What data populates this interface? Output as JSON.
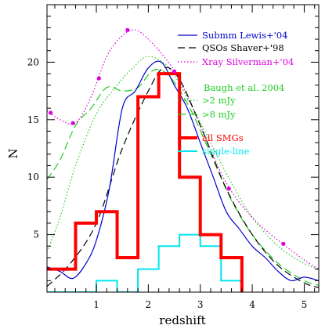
{
  "chart_data": {
    "type": "line",
    "xlabel": "redshift",
    "ylabel": "N",
    "xlim": [
      0.05,
      5.28
    ],
    "ylim": [
      0,
      25
    ],
    "x_ticks": [
      "1",
      "2",
      "3",
      "4",
      "5"
    ],
    "y_ticks": [
      "5",
      "10",
      "15",
      "20"
    ],
    "series": [
      {
        "name": "Submm Lewis+'04",
        "color": "#0000cc",
        "style": "solid",
        "x": [
          0.05,
          0.3,
          0.55,
          0.8,
          1.0,
          1.25,
          1.5,
          1.75,
          2.0,
          2.25,
          2.5,
          2.75,
          3.0,
          3.25,
          3.5,
          3.75,
          4.0,
          4.25,
          4.5,
          4.75,
          5.0,
          5.28
        ],
        "y": [
          2.2,
          1.8,
          1.2,
          2.5,
          4.5,
          9.0,
          16.0,
          17.5,
          19.5,
          20.0,
          18.0,
          16.0,
          13.0,
          10.0,
          7.0,
          5.5,
          4.0,
          3.0,
          1.8,
          1.0,
          1.3,
          1.0
        ]
      },
      {
        "name": "QSOs Shaver+'98",
        "color": "#000000",
        "style": "dashed",
        "x": [
          0.05,
          0.5,
          1.0,
          1.5,
          2.0,
          2.3,
          2.6,
          3.0,
          3.5,
          4.0,
          4.5,
          5.0,
          5.28
        ],
        "y": [
          0.5,
          2.5,
          6.0,
          12.5,
          17.5,
          19.5,
          18.5,
          14.5,
          9.0,
          5.0,
          2.3,
          0.8,
          0.4
        ]
      },
      {
        "name": "Xray Silverman+'04",
        "color": "#e000e0",
        "style": "dotted",
        "x": [
          0.05,
          0.3,
          0.6,
          0.9,
          1.2,
          1.5,
          1.75,
          2.0,
          2.3,
          2.6,
          3.0,
          3.5,
          4.0,
          4.5,
          5.0,
          5.28
        ],
        "y": [
          15.8,
          15.0,
          14.7,
          17.0,
          20.5,
          22.3,
          22.8,
          22.0,
          20.5,
          18.5,
          14.5,
          9.5,
          6.5,
          4.5,
          2.8,
          2.0
        ]
      },
      {
        "name": ">2 mJy",
        "color": "#22cc22",
        "style": "dotted",
        "x": [
          0.05,
          0.3,
          0.6,
          1.0,
          1.4,
          1.7,
          2.0,
          2.4,
          2.8,
          3.2,
          3.6,
          4.0,
          4.5,
          5.0,
          5.28
        ],
        "y": [
          3.5,
          6.5,
          11.0,
          15.5,
          18.0,
          19.5,
          20.5,
          19.5,
          16.5,
          13.0,
          9.5,
          6.5,
          4.0,
          2.5,
          2.0
        ]
      },
      {
        "name": ">8 mJy",
        "color": "#22cc22",
        "style": "dashed",
        "x": [
          0.05,
          0.3,
          0.6,
          0.9,
          1.2,
          1.5,
          1.8,
          2.1,
          2.4,
          2.8,
          3.2,
          3.6,
          4.0,
          4.5,
          5.0,
          5.28
        ],
        "y": [
          9.8,
          11.5,
          14.5,
          16.0,
          17.8,
          17.5,
          17.8,
          19.3,
          18.8,
          16.0,
          12.0,
          8.0,
          5.0,
          2.5,
          1.0,
          0.6
        ]
      },
      {
        "name": "all SMGs",
        "color": "#ff0000",
        "style": "histogram",
        "x": [
          0.05,
          0.3,
          0.6,
          1.0,
          1.4,
          1.8,
          2.2,
          2.6,
          3.0,
          3.4,
          3.8
        ],
        "y": [
          2,
          2,
          6,
          7,
          3,
          17,
          19,
          10,
          5,
          3,
          0
        ]
      },
      {
        "name": "single-line",
        "color": "#00e5ee",
        "style": "histogram",
        "x": [
          0.05,
          1.0,
          1.4,
          1.8,
          2.2,
          2.6,
          3.0,
          3.4,
          3.8
        ],
        "y": [
          0,
          1,
          0,
          2,
          4,
          5,
          4,
          1,
          0
        ]
      }
    ],
    "markers": {
      "series": "Xray Silverman+'04",
      "color": "#e000e0",
      "points": [
        {
          "x": 0.12,
          "y": 15.6
        },
        {
          "x": 0.55,
          "y": 14.7
        },
        {
          "x": 1.05,
          "y": 18.6
        },
        {
          "x": 1.6,
          "y": 22.8
        },
        {
          "x": 2.5,
          "y": 19.2
        },
        {
          "x": 3.55,
          "y": 9.0
        },
        {
          "x": 4.6,
          "y": 4.2
        }
      ]
    },
    "legend": {
      "placement": "top-right",
      "group_title": "Baugh et al. 2004",
      "group_title_color": "#22cc22"
    }
  }
}
